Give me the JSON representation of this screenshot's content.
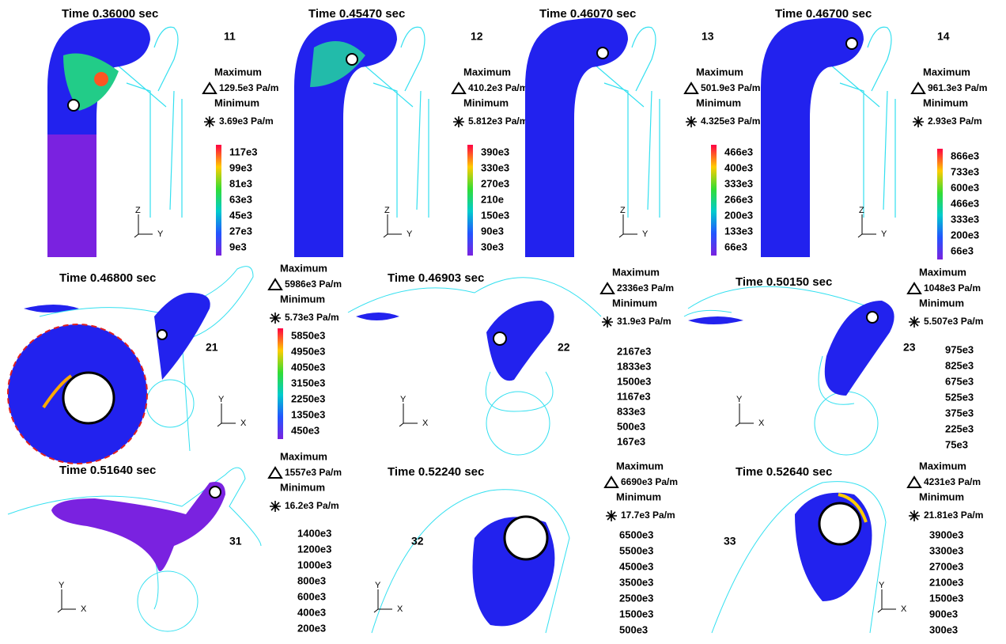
{
  "labels": {
    "maximum": "Maximum",
    "minimum": "Minimum"
  },
  "panels": [
    {
      "time": "Time 0.36000  sec",
      "id": "11",
      "max": "129.5e3 Pa/m",
      "min": "3.69e3 Pa/m",
      "legend": [
        "117e3",
        "99e3",
        "81e3",
        "63e3",
        "45e3",
        "27e3",
        "9e3"
      ],
      "axes": [
        "Z",
        "Y"
      ]
    },
    {
      "time": "Time 0.45470  sec",
      "id": "12",
      "max": "410.2e3 Pa/m",
      "min": "5.812e3 Pa/m",
      "legend": [
        "390e3",
        "330e3",
        "270e3",
        "210e",
        "150e3",
        "90e3",
        "30e3"
      ],
      "axes": [
        "Z",
        "Y"
      ]
    },
    {
      "time": "Time 0.46070  sec",
      "id": "13",
      "max": "501.9e3 Pa/m",
      "min": "4.325e3 Pa/m",
      "legend": [
        "466e3",
        "400e3",
        "333e3",
        "266e3",
        "200e3",
        "133e3",
        "66e3"
      ],
      "axes": [
        "Z",
        "Y"
      ]
    },
    {
      "time": "Time 0.46700  sec",
      "id": "14",
      "max": "961.3e3 Pa/m",
      "min": "2.93e3 Pa/m",
      "legend": [
        "866e3",
        "733e3",
        "600e3",
        "466e3",
        "333e3",
        "200e3",
        "66e3"
      ],
      "axes": [
        "Z",
        "Y"
      ]
    },
    {
      "time": "Time 0.46800  sec",
      "id": "21",
      "max": "5986e3 Pa/m",
      "min": "5.73e3 Pa/m",
      "legend": [
        "5850e3",
        "4950e3",
        "4050e3",
        "3150e3",
        "2250e3",
        "1350e3",
        "450e3"
      ],
      "axes": [
        "Y",
        "X"
      ]
    },
    {
      "time": "Time 0.46903  sec",
      "id": "22",
      "max": "2336e3 Pa/m",
      "min": "31.9e3 Pa/m",
      "legend": [
        "2167e3",
        "1833e3",
        "1500e3",
        "1167e3",
        "833e3",
        "500e3",
        "167e3"
      ],
      "axes": [
        "Y",
        "X"
      ]
    },
    {
      "time": "Time 0.50150  sec",
      "id": "23",
      "max": "1048e3 Pa/m",
      "min": "5.507e3 Pa/m",
      "legend": [
        "975e3",
        "825e3",
        "675e3",
        "525e3",
        "375e3",
        "225e3",
        "75e3"
      ],
      "axes": [
        "Y",
        "X"
      ]
    },
    {
      "time": "Time 0.51640  sec",
      "id": "31",
      "max": "1557e3 Pa/m",
      "min": "16.2e3 Pa/m",
      "legend": [
        "1400e3",
        "1200e3",
        "1000e3",
        "800e3",
        "600e3",
        "400e3",
        "200e3"
      ],
      "axes": [
        "Y",
        "X"
      ]
    },
    {
      "time": "Time 0.52240  sec",
      "id": "32",
      "max": "6690e3 Pa/m",
      "min": "17.7e3 Pa/m",
      "legend": [
        "6500e3",
        "5500e3",
        "4500e3",
        "3500e3",
        "2500e3",
        "1500e3",
        "500e3"
      ],
      "axes": [
        "Y",
        "X"
      ]
    },
    {
      "time": "Time 0.52640  sec",
      "id": "33",
      "max": "4231e3 Pa/m",
      "min": "21.81e3 Pa/m",
      "legend": [
        "3900e3",
        "3300e3",
        "2700e3",
        "2100e3",
        "1500e3",
        "900e3",
        "300e3"
      ],
      "axes": [
        "Y",
        "X"
      ]
    }
  ]
}
